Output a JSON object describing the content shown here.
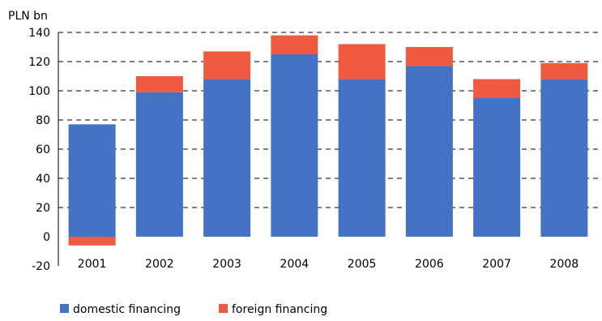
{
  "chart_data": {
    "type": "bar",
    "stacked": true,
    "unit_label": "PLN bn",
    "categories": [
      "2001",
      "2002",
      "2003",
      "2004",
      "2005",
      "2006",
      "2007",
      "2008"
    ],
    "series": [
      {
        "name": "domestic financing",
        "color": "#4472C4",
        "values": [
          77,
          99,
          108,
          125,
          108,
          117,
          95,
          108
        ]
      },
      {
        "name": "foreign financing",
        "color": "#F05A40",
        "values": [
          -6,
          11,
          19,
          13,
          24,
          13,
          13,
          11
        ]
      }
    ],
    "ylim": [
      -20,
      140
    ],
    "yticks": [
      "-20",
      "0",
      "20",
      "40",
      "60",
      "80",
      "100",
      "120",
      "140"
    ],
    "grid": true,
    "legend_position": "bottom-left"
  }
}
